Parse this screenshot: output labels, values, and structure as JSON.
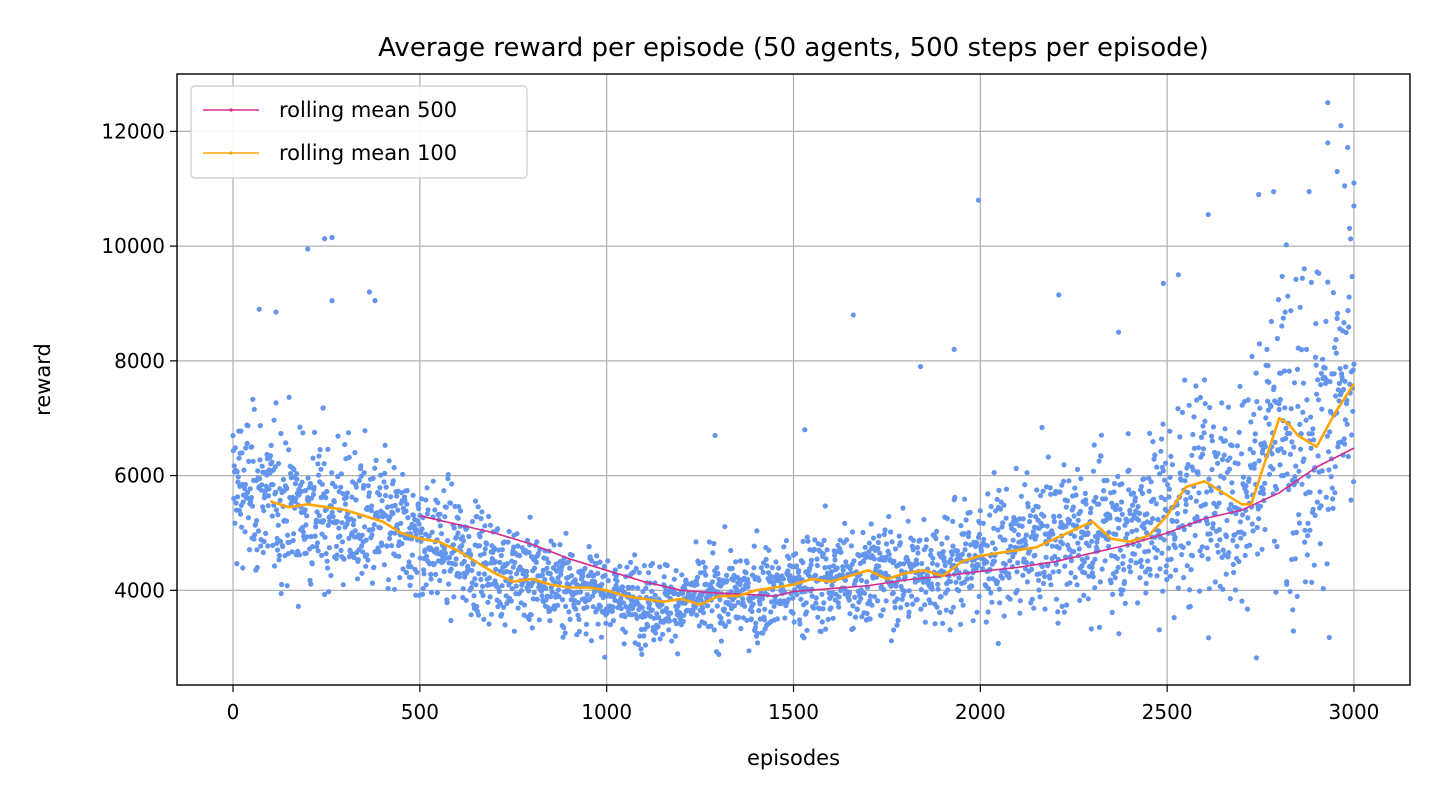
{
  "chart_data": {
    "type": "scatter",
    "title": "Average reward per episode (50 agents, 500 steps per episode)",
    "xlabel": "episodes",
    "ylabel": "reward",
    "xlim": [
      -150,
      3150
    ],
    "ylim": [
      2350,
      13000
    ],
    "xticks": [
      0,
      500,
      1000,
      1500,
      2000,
      2500,
      3000
    ],
    "yticks": [
      4000,
      6000,
      8000,
      10000,
      12000
    ],
    "grid": true,
    "legend_position": "top-left",
    "colors": {
      "scatter": "#6495ed",
      "rolling_500": "#d62c8c",
      "rolling_100": "#ffa500",
      "grid": "#b0b0b0"
    },
    "scatter": {
      "description_of_points": "episode rewards, one point per episode (0–3000), summarized as per-segment trend with spread",
      "trend_x": [
        0,
        100,
        200,
        300,
        400,
        500,
        600,
        700,
        800,
        900,
        1000,
        1100,
        1200,
        1300,
        1400,
        1500,
        1600,
        1700,
        1800,
        1900,
        2000,
        2100,
        2200,
        2300,
        2400,
        2500,
        2600,
        2700,
        2800,
        2900,
        3000
      ],
      "trend_y": [
        5800,
        5600,
        5400,
        5300,
        5100,
        4900,
        4700,
        4400,
        4200,
        4100,
        3900,
        3800,
        3800,
        3900,
        3950,
        4100,
        4200,
        4300,
        4300,
        4400,
        4600,
        4700,
        4900,
        5000,
        5100,
        5300,
        5800,
        5600,
        7000,
        6800,
        7600
      ],
      "spread": [
        900,
        900,
        900,
        850,
        800,
        700,
        650,
        600,
        550,
        500,
        450,
        450,
        450,
        500,
        550,
        550,
        600,
        600,
        600,
        650,
        700,
        750,
        800,
        850,
        950,
        1100,
        1300,
        1300,
        1700,
        1900,
        2000
      ],
      "outliers": [
        {
          "x": 200,
          "y": 9950
        },
        {
          "x": 245,
          "y": 10130
        },
        {
          "x": 265,
          "y": 10150
        },
        {
          "x": 265,
          "y": 9050
        },
        {
          "x": 365,
          "y": 9200
        },
        {
          "x": 380,
          "y": 9050
        },
        {
          "x": 70,
          "y": 8900
        },
        {
          "x": 115,
          "y": 8850
        },
        {
          "x": 1995,
          "y": 10800
        },
        {
          "x": 1660,
          "y": 8800
        },
        {
          "x": 2210,
          "y": 9150
        },
        {
          "x": 2490,
          "y": 9350
        },
        {
          "x": 2530,
          "y": 9500
        },
        {
          "x": 2610,
          "y": 10550
        },
        {
          "x": 2745,
          "y": 10900
        },
        {
          "x": 2785,
          "y": 10950
        },
        {
          "x": 2930,
          "y": 12500
        },
        {
          "x": 2965,
          "y": 12100
        },
        {
          "x": 2930,
          "y": 11800
        },
        {
          "x": 2975,
          "y": 11050
        },
        {
          "x": 3000,
          "y": 11100
        },
        {
          "x": 3000,
          "y": 10700
        },
        {
          "x": 2955,
          "y": 11300
        },
        {
          "x": 2880,
          "y": 10950
        },
        {
          "x": 1290,
          "y": 6700
        },
        {
          "x": 1530,
          "y": 6800
        },
        {
          "x": 1840,
          "y": 7900
        },
        {
          "x": 1930,
          "y": 8200
        },
        {
          "x": 2370,
          "y": 8500
        },
        {
          "x": 2820,
          "y": 4150
        }
      ]
    },
    "series": [
      {
        "name": "rolling mean 500",
        "x": [
          500,
          600,
          700,
          800,
          900,
          1000,
          1100,
          1200,
          1300,
          1400,
          1450,
          1500,
          1600,
          1700,
          1800,
          1900,
          2000,
          2100,
          2200,
          2300,
          2400,
          2500,
          2600,
          2700,
          2800,
          2900,
          3000
        ],
        "values": [
          5300,
          5150,
          5000,
          4800,
          4550,
          4350,
          4150,
          4000,
          3950,
          3920,
          3900,
          3980,
          4030,
          4080,
          4180,
          4250,
          4330,
          4400,
          4500,
          4650,
          4800,
          5000,
          5250,
          5400,
          5700,
          6150,
          6480
        ]
      },
      {
        "name": "rolling mean 100",
        "x": [
          100,
          150,
          200,
          250,
          300,
          350,
          400,
          450,
          500,
          550,
          600,
          650,
          700,
          750,
          800,
          850,
          900,
          950,
          1000,
          1050,
          1100,
          1150,
          1200,
          1250,
          1300,
          1350,
          1400,
          1450,
          1500,
          1550,
          1600,
          1650,
          1700,
          1750,
          1800,
          1850,
          1900,
          1950,
          2000,
          2050,
          2100,
          2150,
          2200,
          2250,
          2300,
          2350,
          2400,
          2450,
          2500,
          2550,
          2600,
          2650,
          2700,
          2725,
          2750,
          2800,
          2825,
          2850,
          2900,
          2950,
          3000
        ],
        "values": [
          5550,
          5450,
          5500,
          5450,
          5400,
          5300,
          5200,
          5000,
          4900,
          4850,
          4700,
          4500,
          4300,
          4150,
          4200,
          4100,
          4050,
          4050,
          4000,
          3900,
          3850,
          3800,
          3850,
          3750,
          3900,
          3900,
          4000,
          4050,
          4100,
          4200,
          4150,
          4250,
          4350,
          4200,
          4300,
          4350,
          4250,
          4500,
          4600,
          4650,
          4700,
          4750,
          4900,
          5050,
          5200,
          4900,
          4850,
          4950,
          5300,
          5800,
          5900,
          5700,
          5500,
          5500,
          6000,
          7000,
          6900,
          6700,
          6500,
          7100,
          7600
        ]
      }
    ]
  }
}
